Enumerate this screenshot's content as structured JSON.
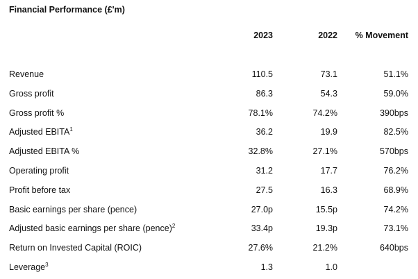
{
  "title": "Financial Performance (£'m)",
  "headers": {
    "col_2023": "2023",
    "col_2022": "2022",
    "col_movement": "% Movement"
  },
  "rows": [
    {
      "label": "Revenue",
      "sup": "",
      "v2023": "110.5",
      "v2022": "73.1",
      "movement": "51.1%"
    },
    {
      "label": "Gross profit",
      "sup": "",
      "v2023": "86.3",
      "v2022": "54.3",
      "movement": "59.0%"
    },
    {
      "label": "Gross profit %",
      "sup": "",
      "v2023": "78.1%",
      "v2022": "74.2%",
      "movement": "390bps"
    },
    {
      "label": "Adjusted EBITA",
      "sup": "1",
      "v2023": "36.2",
      "v2022": "19.9",
      "movement": "82.5%"
    },
    {
      "label": "Adjusted EBITA %",
      "sup": "",
      "v2023": "32.8%",
      "v2022": "27.1%",
      "movement": "570bps"
    },
    {
      "label": "Operating profit",
      "sup": "",
      "v2023": "31.2",
      "v2022": "17.7",
      "movement": "76.2%"
    },
    {
      "label": "Profit before tax",
      "sup": "",
      "v2023": "27.5",
      "v2022": "16.3",
      "movement": "68.9%"
    },
    {
      "label": "Basic earnings per share (pence)",
      "sup": "",
      "v2023": "27.0p",
      "v2022": "15.5p",
      "movement": "74.2%"
    },
    {
      "label": "Adjusted basic earnings per share (pence)",
      "sup": "2",
      "v2023": "33.4p",
      "v2022": "19.3p",
      "movement": "73.1%"
    },
    {
      "label": "Return on Invested Capital (ROIC)",
      "sup": "",
      "v2023": "27.6%",
      "v2022": "21.2%",
      "movement": "640bps"
    },
    {
      "label": "Leverage",
      "sup": "3",
      "v2023": "1.3",
      "v2022": "1.0",
      "movement": ""
    }
  ]
}
